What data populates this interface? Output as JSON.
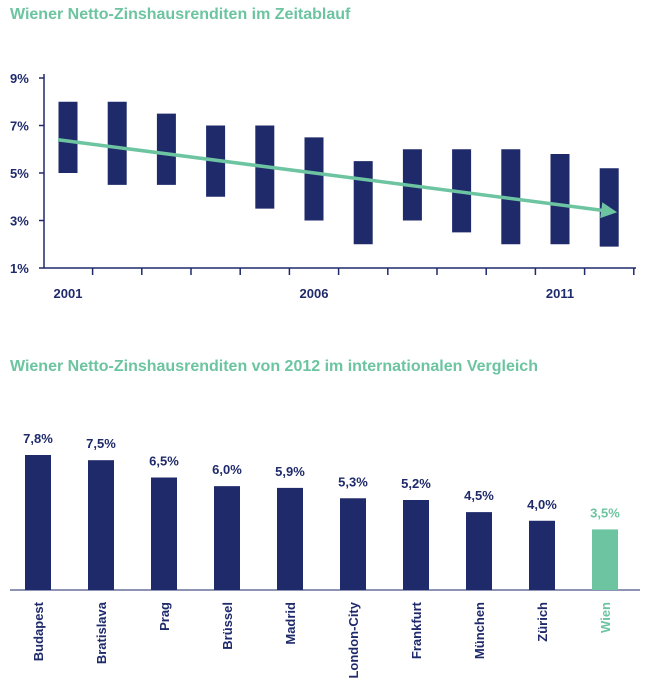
{
  "colors": {
    "navy": "#1f2a6b",
    "green": "#6cc4a0",
    "axis": "#1f2a6b"
  },
  "chart_data": [
    {
      "type": "range_bar",
      "title": "Wiener Netto-Zinshausrenditen im Zeitablauf",
      "x_tick_labels": [
        {
          "year": 2001,
          "label": "2001"
        },
        {
          "year": 2006,
          "label": "2006"
        },
        {
          "year": 2011,
          "label": "2011"
        }
      ],
      "y_tick_labels": [
        "1%",
        "3%",
        "5%",
        "7%",
        "9%"
      ],
      "y_ticks": [
        1,
        3,
        5,
        7,
        9
      ],
      "ylim": [
        1,
        9
      ],
      "xlim": [
        2001,
        2012
      ],
      "ranges": [
        {
          "year": 2001,
          "low": 5.0,
          "high": 8.0
        },
        {
          "year": 2002,
          "low": 4.5,
          "high": 8.0
        },
        {
          "year": 2003,
          "low": 4.5,
          "high": 7.5
        },
        {
          "year": 2004,
          "low": 4.0,
          "high": 7.0
        },
        {
          "year": 2005,
          "low": 3.5,
          "high": 7.0
        },
        {
          "year": 2006,
          "low": 3.0,
          "high": 6.5
        },
        {
          "year": 2007,
          "low": 2.0,
          "high": 5.5
        },
        {
          "year": 2008,
          "low": 3.0,
          "high": 6.0
        },
        {
          "year": 2009,
          "low": 2.5,
          "high": 6.0
        },
        {
          "year": 2010,
          "low": 2.0,
          "high": 6.0
        },
        {
          "year": 2011,
          "low": 2.0,
          "high": 5.8
        },
        {
          "year": 2012,
          "low": 1.9,
          "high": 5.2
        }
      ],
      "trend": {
        "start": {
          "year": 2001,
          "value": 6.4
        },
        "end": {
          "year": 2012,
          "value": 3.4
        }
      },
      "grid": false
    },
    {
      "type": "bar",
      "title": "Wiener Netto-Zinshausrenditen von 2012 im internationalen Vergleich",
      "categories": [
        "Budapest",
        "Bratislava",
        "Prag",
        "Brüssel",
        "Madrid",
        "London-City",
        "Frankfurt",
        "München",
        "Zürich",
        "Wien"
      ],
      "values": [
        7.8,
        7.5,
        6.5,
        6.0,
        5.9,
        5.3,
        5.2,
        4.5,
        4.0,
        3.5
      ],
      "value_labels": [
        "7,8%",
        "7,5%",
        "6,5%",
        "6,0%",
        "5,9%",
        "5,3%",
        "5,2%",
        "4,5%",
        "4,0%",
        "3,5%"
      ],
      "highlight": "Wien",
      "ylim": [
        0,
        8
      ],
      "grid": false
    }
  ]
}
